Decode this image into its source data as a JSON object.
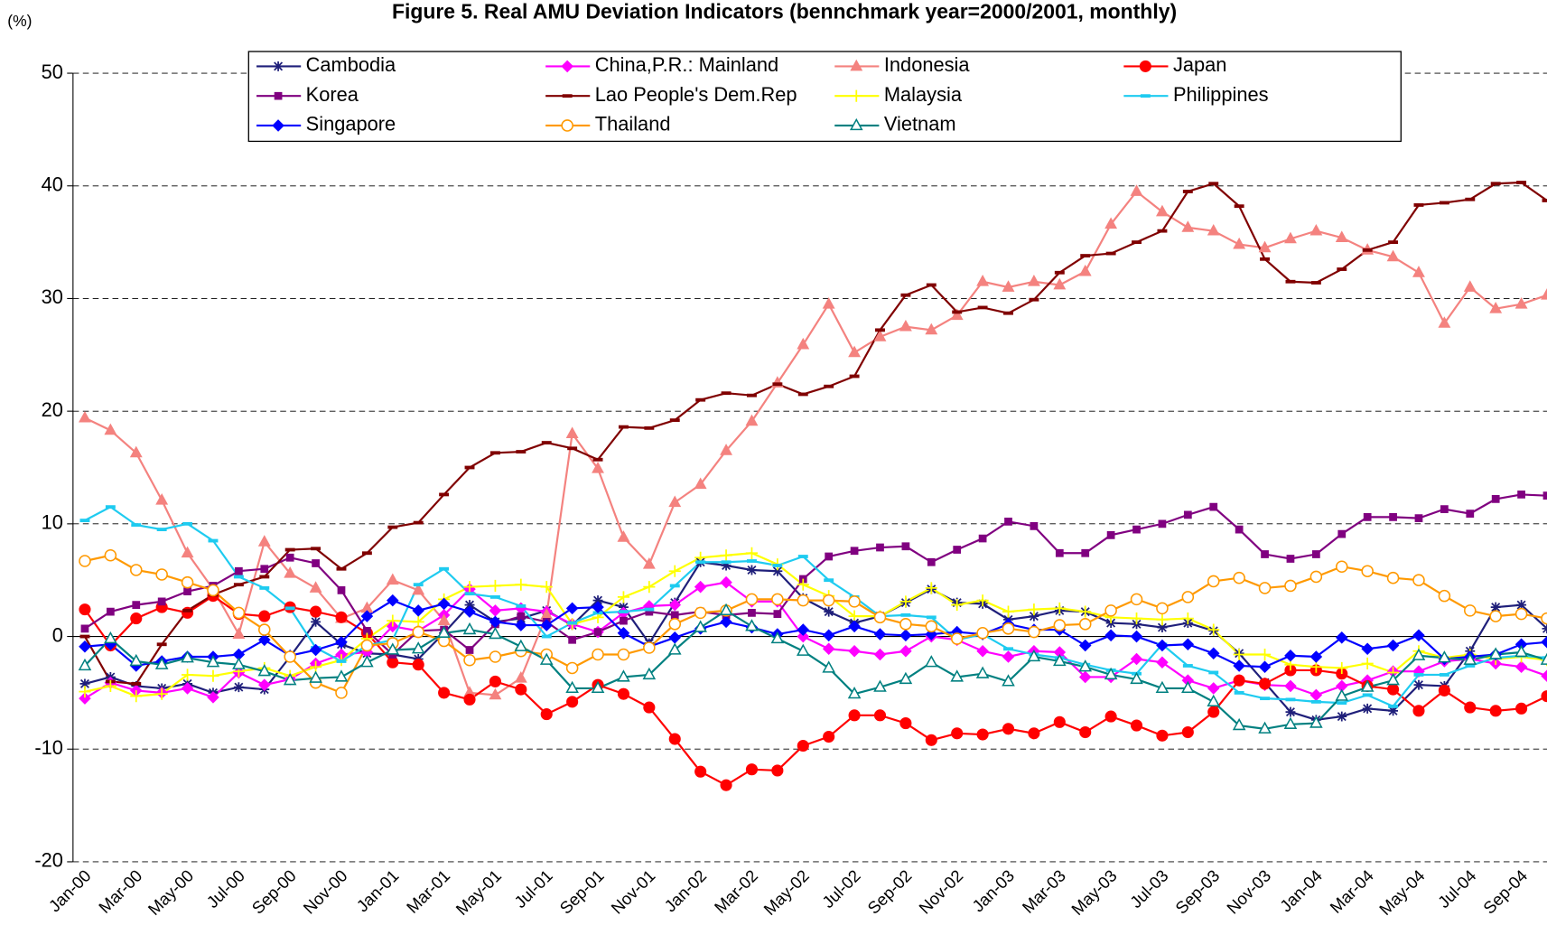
{
  "chart_data": {
    "type": "line",
    "title": "Figure 5. Real AMU Deviation Indicators (bennchmark year=2000/2001, monthly)",
    "y_label": "(%)",
    "categories": [
      "Jan-00",
      null,
      "Mar-00",
      null,
      "May-00",
      null,
      "Jul-00",
      null,
      "Sep-00",
      null,
      "Nov-00",
      null,
      "Jan-01",
      null,
      "Mar-01",
      null,
      "May-01",
      null,
      "Jul-01",
      null,
      "Sep-01",
      null,
      "Nov-01",
      null,
      "Jan-02",
      null,
      "Mar-02",
      null,
      "May-02",
      null,
      "Jul-02",
      null,
      "Sep-02",
      null,
      "Nov-02",
      null,
      "Jan-03",
      null,
      "Mar-03",
      null,
      "May-03",
      null,
      "Jul-03",
      null,
      "Sep-03",
      null,
      "Nov-03",
      null,
      "Jan-04",
      null,
      "Mar-04",
      null,
      "May-04",
      null,
      "Jul-04",
      null,
      "Sep-04",
      null
    ],
    "ylim": [
      -20,
      50
    ],
    "yticks": [
      -20,
      -10,
      0,
      10,
      20,
      30,
      40,
      50
    ],
    "grid": true,
    "legend": "top",
    "series": [
      {
        "name": "Cambodia",
        "color": "#1f1f7a",
        "marker": "asterisk",
        "values": [
          -4.2,
          -3.6,
          -4.4,
          -4.6,
          -4.2,
          -5,
          -4.5,
          -4.7,
          -1.8,
          1.3,
          -0.7,
          -1.5,
          -1.6,
          -2,
          0.3,
          2.8,
          1.3,
          1.6,
          2.3,
          1,
          3.2,
          2.6,
          -0.6,
          3,
          6.6,
          6.3,
          5.9,
          5.8,
          3.4,
          2.2,
          1.2,
          1.8,
          3,
          4.2,
          3,
          2.9,
          1.5,
          1.8,
          2.3,
          2.2,
          1.2,
          1.1,
          0.8,
          1.2,
          0.5,
          -1.5,
          -4.1,
          -6.7,
          -7.4,
          -7.1,
          -6.4,
          -6.6,
          -4.3,
          -4.4,
          -1.3,
          2.6,
          2.8,
          0.7
        ]
      },
      {
        "name": "China,P.R.: Mainland",
        "color": "#ff00ff",
        "marker": "diamond",
        "values": [
          -5.5,
          -4.1,
          -4.8,
          -5,
          -4.6,
          -5.4,
          -3.2,
          -4.3,
          -3.8,
          -2.4,
          -1.6,
          -1.4,
          0.9,
          0.5,
          1.9,
          4.2,
          2.3,
          2.5,
          2.2,
          1.1,
          0.4,
          2.1,
          2.7,
          2.8,
          4.4,
          4.8,
          3.1,
          3.1,
          0,
          -1.1,
          -1.3,
          -1.6,
          -1.3,
          0,
          -0.3,
          -1.3,
          -1.8,
          -1.3,
          -1.4,
          -3.6,
          -3.6,
          -2,
          -2.3,
          -3.9,
          -4.6,
          -3.9,
          -4.3,
          -4.4,
          -5.2,
          -4.4,
          -3.9,
          -3.1,
          -3.1,
          -2.2,
          -2,
          -2.4,
          -2.7,
          -3.5
        ]
      },
      {
        "name": "Indonesia",
        "color": "#f4827f",
        "marker": "triangle",
        "values": [
          19.4,
          18.3,
          16.3,
          12.1,
          7.4,
          4.2,
          0.2,
          8.4,
          5.6,
          4.3,
          1.6,
          2.5,
          5,
          4.1,
          1.4,
          -5,
          -5.2,
          -3.7,
          1.9,
          18,
          14.9,
          8.8,
          6.4,
          11.9,
          13.5,
          16.5,
          19.1,
          22.5,
          25.9,
          29.5,
          25.2,
          26.6,
          27.5,
          27.2,
          28.5,
          31.5,
          31,
          31.5,
          31.2,
          32.4,
          36.6,
          39.5,
          37.7,
          36.3,
          36,
          34.8,
          34.5,
          35.3,
          36,
          35.4,
          34.3,
          33.7,
          32.3,
          27.8,
          31,
          29.1,
          29.5,
          30.3
        ]
      },
      {
        "name": "Japan",
        "color": "#ff0000",
        "marker": "circle",
        "values": [
          2.4,
          -0.8,
          1.6,
          2.6,
          2.1,
          3.6,
          2,
          1.8,
          2.6,
          2.2,
          1.7,
          0.3,
          -2.3,
          -2.5,
          -5,
          -5.6,
          -4,
          -4.7,
          -6.9,
          -5.8,
          -4.3,
          -5.1,
          -6.3,
          -9.1,
          -12,
          -13.2,
          -11.8,
          -11.9,
          -9.7,
          -8.9,
          -7,
          -7,
          -7.7,
          -9.2,
          -8.6,
          -8.7,
          -8.2,
          -8.6,
          -7.6,
          -8.5,
          -7.1,
          -7.9,
          -8.8,
          -8.5,
          -6.7,
          -3.9,
          -4.2,
          -3,
          -3,
          -3.3,
          -4.4,
          -4.7,
          -6.6,
          -4.8,
          -6.3,
          -6.6,
          -6.4,
          -5.3
        ]
      },
      {
        "name": "Korea",
        "color": "#800080",
        "marker": "square",
        "values": [
          0.7,
          2.2,
          2.8,
          3.1,
          4,
          4.5,
          5.8,
          6,
          7,
          6.5,
          4.1,
          0.5,
          -1.6,
          0.5,
          0.6,
          -1.2,
          1.1,
          1.8,
          1.3,
          -0.3,
          0.4,
          1.4,
          2.2,
          1.9,
          2.2,
          1.9,
          2.1,
          2,
          5.1,
          7.1,
          7.6,
          7.9,
          8,
          6.6,
          7.7,
          8.7,
          10.2,
          9.8,
          7.4,
          7.4,
          9,
          9.5,
          10,
          10.8,
          11.5,
          9.5,
          7.3,
          6.9,
          7.3,
          9.1,
          10.6,
          10.6,
          10.5,
          11.3,
          10.9,
          12.2,
          12.6,
          12.5
        ]
      },
      {
        "name": "Lao People's Dem.Rep",
        "color": "#800000",
        "marker": "dash",
        "values": [
          0,
          -4,
          -4.2,
          -0.7,
          2.3,
          3.7,
          4.6,
          5.3,
          7.7,
          7.8,
          6,
          7.4,
          9.7,
          10.1,
          12.6,
          15,
          16.3,
          16.4,
          17.2,
          16.7,
          15.7,
          18.6,
          18.5,
          19.2,
          21,
          21.6,
          21.4,
          22.4,
          21.5,
          22.2,
          23.1,
          27.2,
          30.3,
          31.2,
          28.8,
          29.2,
          28.7,
          29.9,
          32.3,
          33.8,
          34,
          35,
          36,
          39.5,
          40.2,
          38.2,
          33.5,
          31.5,
          31.4,
          32.6,
          34.3,
          35,
          38.3,
          38.5,
          38.8,
          40.2,
          40.3,
          38.7
        ]
      },
      {
        "name": "Malaysia",
        "color": "#ffff00",
        "marker": "plus",
        "values": [
          -4.9,
          -4.4,
          -5.3,
          -5.1,
          -3.4,
          -3.5,
          -3.1,
          -2.8,
          -3.5,
          -2.7,
          -2.1,
          -0.2,
          1.4,
          1.3,
          3.3,
          4.4,
          4.5,
          4.6,
          4.4,
          1.1,
          1.7,
          3.5,
          4.4,
          5.8,
          7,
          7.2,
          7.4,
          6.4,
          4.6,
          3.6,
          1.8,
          1.8,
          3.1,
          4.3,
          2.8,
          3.2,
          2.2,
          2.4,
          2.5,
          2.2,
          1.7,
          1.6,
          1.5,
          1.6,
          0.6,
          -1.6,
          -1.6,
          -2.5,
          -2.7,
          -2.8,
          -2.4,
          -3.2,
          -1.3,
          -1.9,
          -1.6,
          -2,
          -1.8,
          -2.1
        ]
      },
      {
        "name": "Philippines",
        "color": "#1ecbf0",
        "marker": "dash",
        "values": [
          10.3,
          11.5,
          9.9,
          9.5,
          10,
          8.5,
          5.3,
          4.3,
          2.5,
          -1,
          -2.2,
          -0.8,
          -0.3,
          4.6,
          6,
          3.8,
          3.5,
          2.7,
          0,
          1.2,
          2.1,
          2.2,
          2.4,
          4.5,
          6.6,
          6.6,
          6.7,
          6.3,
          7.1,
          5,
          3.5,
          1.8,
          1.9,
          1.7,
          -0.3,
          0.2,
          -1.1,
          -1.6,
          -1.9,
          -2.5,
          -3,
          -3.3,
          -0.7,
          -2.6,
          -3.2,
          -5,
          -5.5,
          -5.6,
          -5.8,
          -5.9,
          -5.2,
          -6.2,
          -3.4,
          -3.4,
          -2.6,
          -1.9,
          -1.7,
          -1.9
        ]
      },
      {
        "name": "Singapore",
        "color": "#0000ff",
        "marker": "diamond",
        "values": [
          -0.9,
          -0.7,
          -2.6,
          -2.2,
          -1.8,
          -1.8,
          -1.6,
          -0.3,
          -1.7,
          -1.2,
          -0.5,
          1.8,
          3.2,
          2.3,
          2.9,
          2.2,
          1.3,
          1,
          1,
          2.5,
          2.6,
          0.3,
          -0.9,
          -0.1,
          0.7,
          1.3,
          0.8,
          0.2,
          0.6,
          0.1,
          0.9,
          0.2,
          0.1,
          0.2,
          0.4,
          0.2,
          1.1,
          0.6,
          0.6,
          -0.8,
          0.1,
          0,
          -0.8,
          -0.7,
          -1.5,
          -2.6,
          -2.7,
          -1.7,
          -1.8,
          -0.1,
          -1.1,
          -0.8,
          0.1,
          -2,
          -1.8,
          -1.6,
          -0.7,
          -0.5
        ]
      },
      {
        "name": "Thailand",
        "color": "#ff9900",
        "marker": "open-circle",
        "values": [
          6.7,
          7.2,
          5.9,
          5.5,
          4.8,
          4.1,
          2.1,
          0.6,
          -1.8,
          -4.1,
          -5,
          -0.8,
          -0.6,
          0.4,
          -0.4,
          -2.1,
          -1.8,
          -1.3,
          -1.6,
          -2.8,
          -1.6,
          -1.6,
          -1,
          1.1,
          2.1,
          2.3,
          3.3,
          3.3,
          3.2,
          3.2,
          3.1,
          1.7,
          1.1,
          0.9,
          -0.2,
          0.3,
          0.7,
          0.4,
          1,
          1.1,
          2.3,
          3.3,
          2.5,
          3.5,
          4.9,
          5.2,
          4.3,
          4.5,
          5.3,
          6.2,
          5.8,
          5.2,
          5,
          3.6,
          2.3,
          1.8,
          2,
          1.6
        ]
      },
      {
        "name": "Vietnam",
        "color": "#008080",
        "marker": "open-triangle",
        "values": [
          -2.6,
          -0.2,
          -2.2,
          -2.5,
          -1.9,
          -2.3,
          -2.5,
          -3.1,
          -3.9,
          -3.7,
          -3.6,
          -2.3,
          -1.2,
          -1.1,
          0.3,
          0.6,
          0.2,
          -0.9,
          -2.1,
          -4.6,
          -4.6,
          -3.6,
          -3.4,
          -1.2,
          0.8,
          2.3,
          0.9,
          -0.2,
          -1.3,
          -2.8,
          -5.1,
          -4.5,
          -3.8,
          -2.3,
          -3.6,
          -3.3,
          -4,
          -1.8,
          -2.2,
          -2.7,
          -3.4,
          -3.8,
          -4.6,
          -4.6,
          -5.8,
          -7.9,
          -8.2,
          -7.8,
          -7.7,
          -5.3,
          -4.5,
          -3.9,
          -1.7,
          -1.9,
          -2.1,
          -1.6,
          -1.4,
          -2.1
        ]
      }
    ]
  }
}
